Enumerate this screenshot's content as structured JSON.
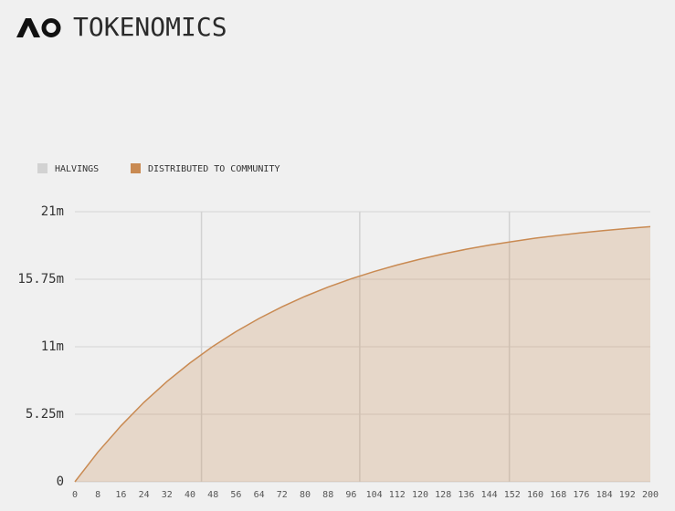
{
  "chart_data": {
    "type": "area",
    "title": "TOKENOMICS",
    "x": [
      0,
      8,
      16,
      24,
      32,
      40,
      48,
      56,
      64,
      72,
      80,
      88,
      96,
      104,
      112,
      120,
      128,
      136,
      144,
      152,
      160,
      168,
      176,
      184,
      192,
      200
    ],
    "series": [
      {
        "name": "DISTRIBUTED TO COMMUNITY",
        "color": "#c98a52",
        "values": [
          0,
          2310000,
          4350000,
          6180000,
          7800000,
          9240000,
          10540000,
          11680000,
          12700000,
          13610000,
          14420000,
          15140000,
          15780000,
          16350000,
          16860000,
          17310000,
          17720000,
          18080000,
          18400000,
          18680000,
          18940000,
          19160000,
          19360000,
          19540000,
          19700000,
          19840000
        ]
      }
    ],
    "halvings": {
      "name": "HALVINGS",
      "color": "#d2d2d2",
      "x": [
        44,
        99,
        151
      ]
    },
    "xlim": [
      0,
      200
    ],
    "xticks": [
      0,
      8,
      16,
      24,
      32,
      40,
      48,
      56,
      64,
      72,
      80,
      88,
      96,
      104,
      112,
      120,
      128,
      136,
      144,
      152,
      160,
      168,
      176,
      184,
      192,
      200
    ],
    "ylim": [
      0,
      21000000
    ],
    "yticks": [
      {
        "value": 0,
        "label": "0"
      },
      {
        "value": 5250000,
        "label": "5.25m"
      },
      {
        "value": 10500000,
        "label": "11m"
      },
      {
        "value": 15750000,
        "label": "15.75m"
      },
      {
        "value": 21000000,
        "label": "21m"
      }
    ],
    "grid": true,
    "legend": "top-left"
  }
}
